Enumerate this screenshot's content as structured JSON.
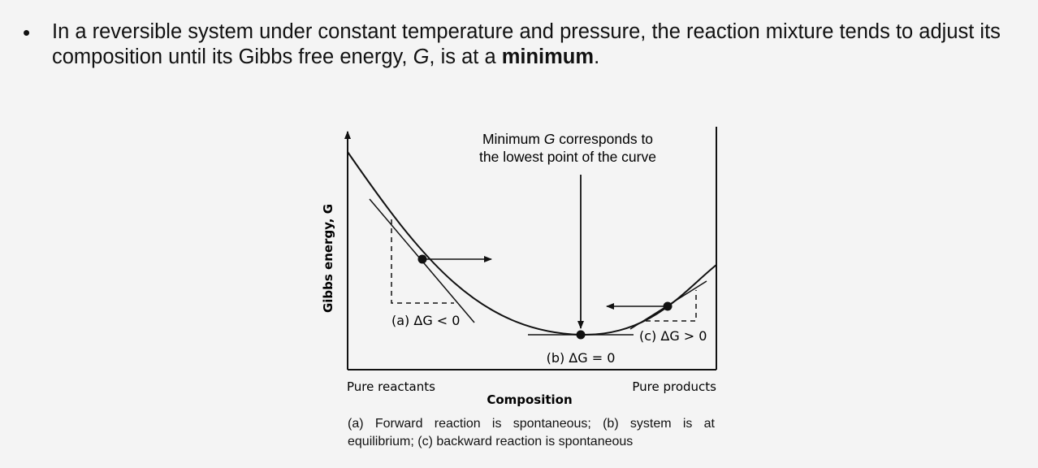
{
  "bullet": {
    "marker": "•",
    "text_part1": "In a reversible system under constant temperature and pressure, the reaction mixture tends to adjust its composition until its Gibbs free energy, ",
    "text_var": "G",
    "text_part2": ", is at a ",
    "text_bold": "minimum",
    "text_end": "."
  },
  "diagram": {
    "annotation_line1_pre": "Minimum ",
    "annotation_line1_var": "G",
    "annotation_line1_post": " corresponds to",
    "annotation_line2": "the lowest point of the curve",
    "y_axis_label": "Gibbs energy, G",
    "x_axis_label": "Composition",
    "x_left_label": "Pure reactants",
    "x_right_label": "Pure products",
    "point_a_label": "(a) ΔG < 0",
    "point_b_label": "(b) ΔG = 0",
    "point_c_label": "(c) ΔG > 0",
    "caption": "(a) Forward reaction is spontaneous; (b) system is at equilibrium; (c) backward reaction is spontaneous"
  }
}
